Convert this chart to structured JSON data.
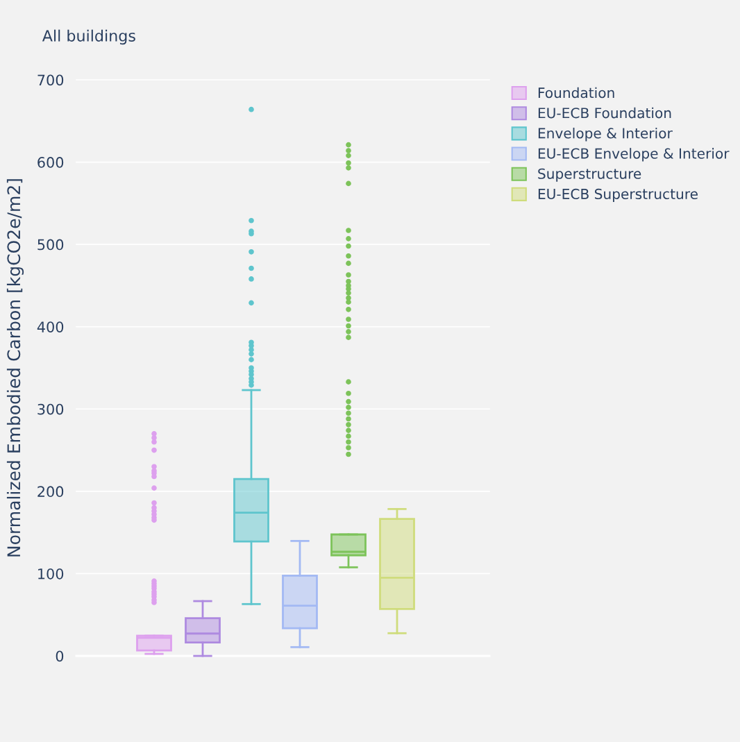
{
  "chart_data": {
    "type": "box",
    "title": "All buildings",
    "ylabel": "Normalized Embodied Carbon [kgCO2e/m2]",
    "categories": [
      null
    ],
    "ylim": [
      0,
      700
    ],
    "yticks": [
      0,
      100,
      200,
      300,
      400,
      500,
      600,
      700
    ],
    "grid": "y",
    "legend": "top right",
    "tick_labels": "y",
    "series": [
      {
        "name": "Foundation",
        "color": "#dda0ee",
        "boxes": [
          {
            "low": 2.5,
            "q1": 6.7,
            "median": 22,
            "q3": 24.5,
            "high": 24.5,
            "outliers": [
              270,
              265,
              260,
              250,
              230,
              225,
              222,
              218,
              204,
              186,
              180,
              176,
              172,
              168,
              165,
              91,
              88,
              85,
              82,
              78,
              75,
              72,
              68,
              65
            ]
          }
        ]
      },
      {
        "name": "EU-ECB Foundation",
        "color": "#ae8ae0",
        "boxes": [
          {
            "low": 0,
            "q1": 16.3,
            "median": 27.2,
            "q3": 45.8,
            "high": 66.6
          }
        ]
      },
      {
        "name": "Envelope & Interior",
        "color": "#5ec5cd",
        "boxes": [
          {
            "low": 63,
            "q1": 139,
            "median": 174,
            "q3": 215,
            "high": 323,
            "outliers": [
              664,
              529,
              516,
              513,
              491,
              471,
              458,
              429,
              381,
              377,
              372,
              367,
              360,
              350,
              346,
              342,
              337,
              333,
              329
            ]
          }
        ]
      },
      {
        "name": "EU-ECB Envelope & Interior",
        "color": "#a3b9f3",
        "boxes": [
          {
            "low": 10.7,
            "q1": 33.7,
            "median": 61,
            "q3": 97.6,
            "high": 139.7
          }
        ]
      },
      {
        "name": "Superstructure",
        "color": "#7dc35a",
        "boxes": [
          {
            "low": 107.7,
            "q1": 122.3,
            "median": 126.5,
            "q3": 147.6,
            "high": 147.6,
            "outliers": [
              621,
              614,
              608,
              599,
              593,
              574,
              517,
              507,
              498,
              486,
              477,
              463,
              455,
              450,
              446,
              441,
              435,
              430,
              421,
              409,
              401,
              394,
              387,
              333,
              319,
              309,
              302,
              295,
              288,
              281,
              274,
              267,
              260,
              253,
              245
            ]
          }
        ]
      },
      {
        "name": "EU-ECB Superstructure",
        "color": "#cfdc7c",
        "boxes": [
          {
            "low": 27.6,
            "q1": 57,
            "median": 95,
            "q3": 166.4,
            "high": 178.5
          }
        ]
      }
    ]
  }
}
